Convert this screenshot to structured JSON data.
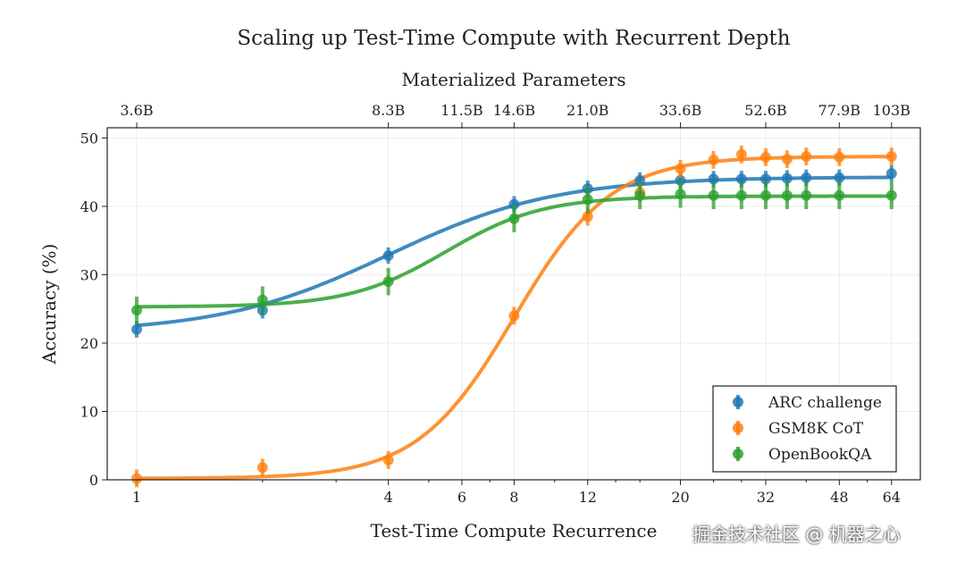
{
  "chart_data": {
    "type": "line",
    "title": "Scaling up Test-Time Compute with Recurrent Depth",
    "top_xlabel": "Materialized Parameters",
    "xlabel": "Test-Time Compute Recurrence",
    "ylabel": "Accuracy (%)",
    "xscale": "log2",
    "xlim": [
      0.85,
      75
    ],
    "ylim": [
      0,
      51.5
    ],
    "grid": true,
    "legend_position": "bottom-right",
    "x_ticks": [
      1,
      4,
      6,
      8,
      12,
      20,
      32,
      48,
      64
    ],
    "x_tick_labels": [
      "1",
      "4",
      "6",
      "8",
      "12",
      "20",
      "32",
      "48",
      "64"
    ],
    "top_ticks": [
      1,
      4,
      6,
      8,
      12,
      20,
      32,
      48,
      64
    ],
    "top_tick_labels": [
      "3.6B",
      "8.3B",
      "11.5B",
      "14.6B",
      "21.0B",
      "33.6B",
      "52.6B",
      "77.9B",
      "103B"
    ],
    "y_ticks": [
      0,
      10,
      20,
      30,
      40,
      50
    ],
    "y_tick_labels": [
      "0",
      "10",
      "20",
      "30",
      "40",
      "50"
    ],
    "x": [
      1,
      2,
      4,
      8,
      12,
      16,
      20,
      24,
      28,
      32,
      36,
      40,
      48,
      64
    ],
    "series": [
      {
        "name": "ARC challenge",
        "color": "#1f77b4",
        "values": [
          22.0,
          24.8,
          32.8,
          40.3,
          42.6,
          43.8,
          43.8,
          44.0,
          44.0,
          44.0,
          44.1,
          44.2,
          44.2,
          44.8
        ],
        "error": 1.2,
        "fit": {
          "low": 21.5,
          "high": 44.3,
          "center_log2x": 2.0,
          "slope": 1.5
        }
      },
      {
        "name": "GSM8K CoT",
        "color": "#ff7f0e",
        "values": [
          0.2,
          1.8,
          2.9,
          24.0,
          38.5,
          42.0,
          45.5,
          46.8,
          47.6,
          47.2,
          46.9,
          47.3,
          47.2,
          47.3
        ],
        "error": 1.3,
        "fit": {
          "low": 0.2,
          "high": 47.3,
          "center_log2x": 3.0,
          "slope": 2.6
        }
      },
      {
        "name": "OpenBookQA",
        "color": "#2ca02c",
        "values": [
          24.8,
          26.3,
          29.0,
          38.2,
          41.0,
          41.6,
          41.8,
          41.6,
          41.6,
          41.6,
          41.6,
          41.6,
          41.6,
          41.6
        ],
        "error": 2.0,
        "fit": {
          "low": 25.3,
          "high": 41.5,
          "center_log2x": 2.46,
          "slope": 2.6
        }
      }
    ]
  },
  "watermark": "掘金技术社区 @ 机器之心"
}
